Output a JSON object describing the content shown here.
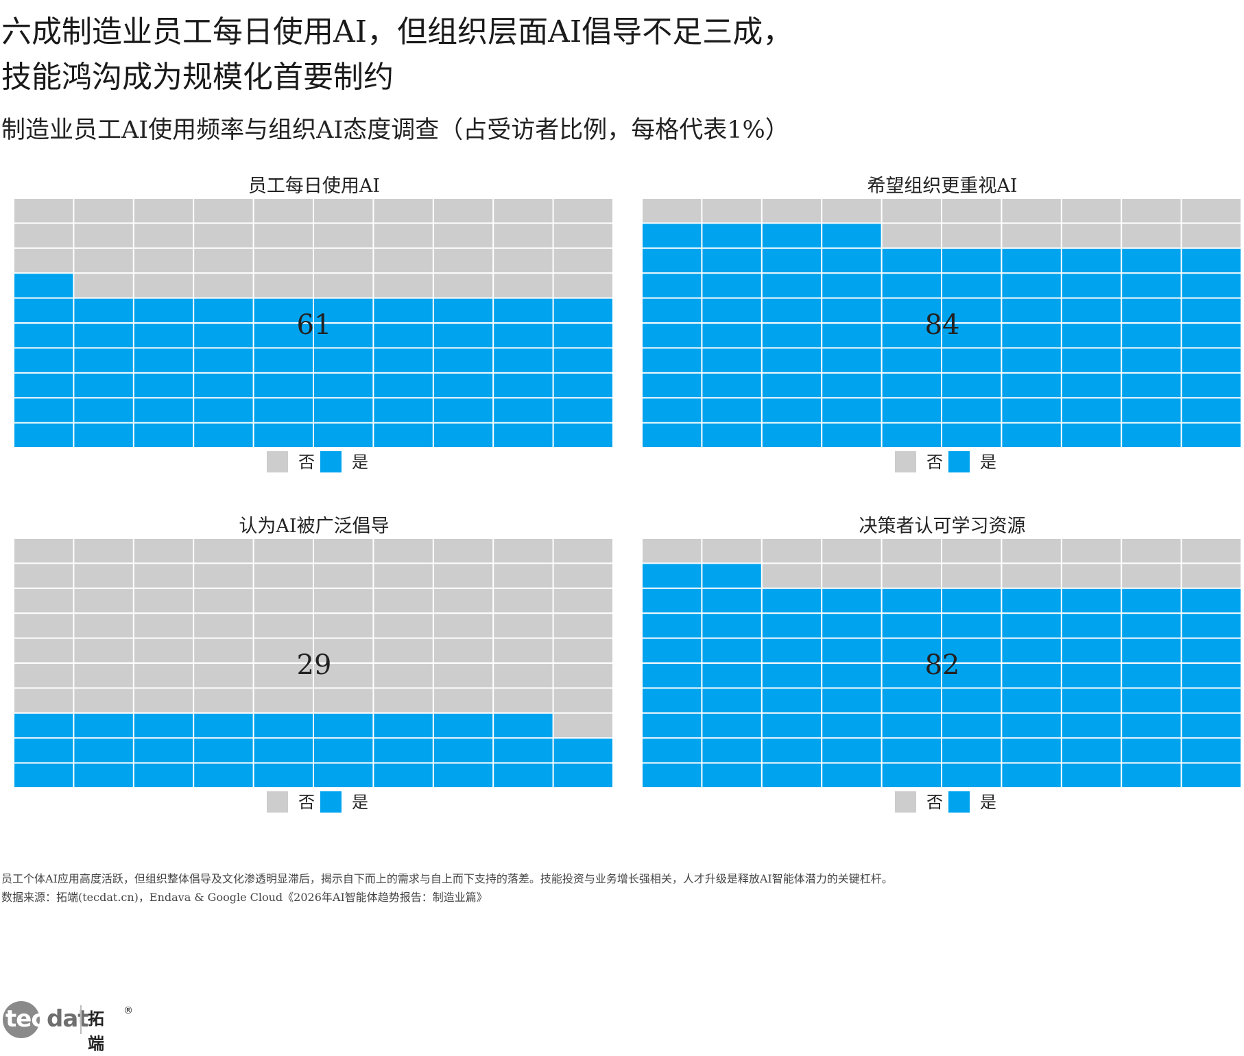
{
  "title": {
    "line1": "六成制造业员工每日使用AI，但组织层面AI倡导不足三成，",
    "line2": "技能鸿沟成为规模化首要制约"
  },
  "subtitle": "制造业员工AI使用频率与组织AI态度调查（占受访者比例，每格代表1%）",
  "colors": {
    "yes": "#00A3EE",
    "no": "#CDCDCD",
    "gridline": "#ffffff"
  },
  "chart_data": [
    {
      "type": "waffle",
      "title": "员工每日使用AI",
      "grid": [
        10,
        10
      ],
      "values": {
        "yes": 61,
        "no": 39
      },
      "label": "61",
      "legend": [
        "否",
        "是"
      ]
    },
    {
      "type": "waffle",
      "title": "希望组织更重视AI",
      "grid": [
        10,
        10
      ],
      "values": {
        "yes": 84,
        "no": 16
      },
      "label": "84",
      "legend": [
        "否",
        "是"
      ]
    },
    {
      "type": "waffle",
      "title": "认为AI被广泛倡导",
      "grid": [
        10,
        10
      ],
      "values": {
        "yes": 29,
        "no": 71
      },
      "label": "29",
      "legend": [
        "否",
        "是"
      ]
    },
    {
      "type": "waffle",
      "title": "决策者认可学习资源",
      "grid": [
        10,
        10
      ],
      "values": {
        "yes": 82,
        "no": 18
      },
      "label": "82",
      "legend": [
        "否",
        "是"
      ]
    }
  ],
  "notes": {
    "line1": "员工个体AI应用高度活跃，但组织整体倡导及文化渗透明显滞后，揭示自下而上的需求与自上而下支持的落差。技能投资与业务增长强相关，人才升级是释放AI智能体潜力的关键杠杆。",
    "line2": "数据来源：拓端(tecdat.cn)，Endava & Google Cloud《2026年AI智能体趋势报告：制造业篇》"
  },
  "logo": {
    "tec": "tec",
    "dat": "dat",
    "cn": "拓端",
    "reg": "®"
  }
}
